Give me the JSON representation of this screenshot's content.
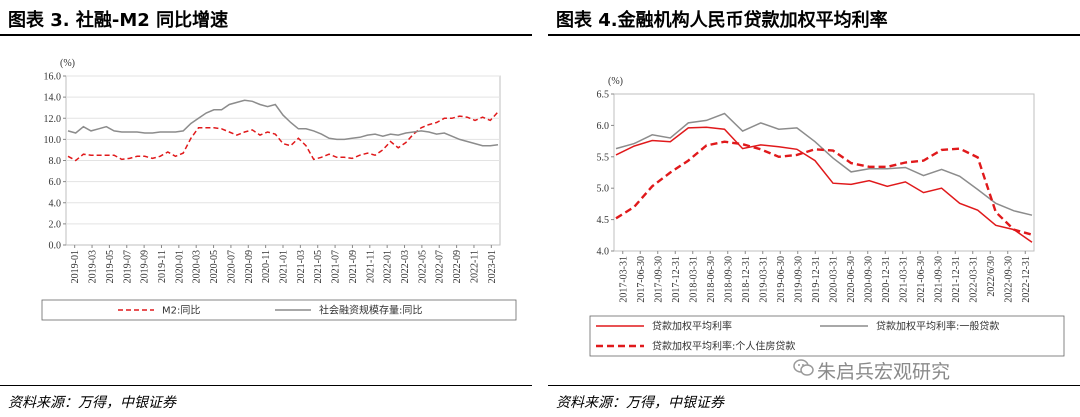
{
  "left": {
    "title": "图表 3. 社融-M2 同比增速",
    "source": "资料来源：万得，中银证券"
  },
  "right": {
    "title": "图表 4.金融机构人民币贷款加权平均利率",
    "source": "资料来源：万得，中银证券"
  },
  "watermark": {
    "text": "朱启兵宏观研究",
    "icon": "wechat-icon"
  },
  "colors": {
    "red": "#e0191b",
    "gray": "#8c8c8c"
  },
  "chart_data": [
    {
      "type": "line",
      "unit": "(%)",
      "ylim": [
        0,
        16
      ],
      "yticks": [
        "0.0",
        "2.0",
        "4.0",
        "6.0",
        "8.0",
        "10.0",
        "12.0",
        "14.0",
        "16.0"
      ],
      "xticks": [
        "2019-01",
        "2019-03",
        "2019-05",
        "2019-07",
        "2019-09",
        "2019-11",
        "2020-01",
        "2020-03",
        "2020-05",
        "2020-07",
        "2020-09",
        "2020-11",
        "2021-01",
        "2021-03",
        "2021-05",
        "2021-07",
        "2021-09",
        "2021-11",
        "2022-01",
        "2022-03",
        "2022-05",
        "2022-07",
        "2022-09",
        "2022-11",
        "2023-01"
      ],
      "grid": true,
      "legend": "bottom",
      "series": [
        {
          "name": "M2:同比",
          "style": "dashed",
          "color": "#e0191b",
          "values": [
            8.4,
            8.0,
            8.6,
            8.5,
            8.5,
            8.5,
            8.5,
            8.1,
            8.2,
            8.4,
            8.4,
            8.2,
            8.4,
            8.8,
            8.4,
            8.7,
            10.1,
            11.1,
            11.1,
            11.1,
            11.0,
            10.7,
            10.4,
            10.7,
            10.9,
            10.4,
            10.7,
            10.5,
            9.6,
            9.4,
            10.1,
            9.4,
            8.1,
            8.3,
            8.6,
            8.3,
            8.3,
            8.2,
            8.5,
            8.7,
            8.5,
            9.0,
            9.8,
            9.2,
            9.7,
            10.5,
            11.1,
            11.4,
            11.6,
            12.0,
            12.0,
            12.2,
            12.1,
            11.8,
            12.1,
            11.8,
            12.6
          ]
        },
        {
          "name": "社会融资规模存量:同比",
          "style": "solid",
          "color": "#8c8c8c",
          "values": [
            10.8,
            10.6,
            11.2,
            10.8,
            11.0,
            11.2,
            10.8,
            10.7,
            10.7,
            10.7,
            10.6,
            10.6,
            10.7,
            10.7,
            10.7,
            10.8,
            11.5,
            12.0,
            12.5,
            12.8,
            12.8,
            13.3,
            13.5,
            13.7,
            13.6,
            13.3,
            13.1,
            13.3,
            12.3,
            11.6,
            11.0,
            11.0,
            10.8,
            10.5,
            10.1,
            10.0,
            10.0,
            10.1,
            10.2,
            10.4,
            10.5,
            10.3,
            10.5,
            10.4,
            10.6,
            10.7,
            10.8,
            10.7,
            10.5,
            10.6,
            10.3,
            10.0,
            9.8,
            9.6,
            9.4,
            9.4,
            9.5
          ]
        }
      ]
    },
    {
      "type": "line",
      "unit": "(%)",
      "ylim": [
        4.0,
        6.5
      ],
      "yticks": [
        "4.0",
        "4.5",
        "5.0",
        "5.5",
        "6.0",
        "6.5"
      ],
      "xticks": [
        "2017-03-31",
        "2017-06-30",
        "2017-09-30",
        "2017-12-31",
        "2018-03-31",
        "2018-06-30",
        "2018-09-30",
        "2018-12-31",
        "2019-03-31",
        "2019-06-30",
        "2019-09-30",
        "2019-12-31",
        "2020-03-31",
        "2020-06-30",
        "2020-09-30",
        "2020-12-31",
        "2021-03-31",
        "2021-06-30",
        "2021-09-30",
        "2021-12-31",
        "2022-03-31",
        "2022/6/30",
        "2022-09-30",
        "2022-12-31"
      ],
      "grid": false,
      "legend": "bottom",
      "series": [
        {
          "name": "贷款加权平均利率",
          "style": "solid",
          "color": "#e0191b",
          "values": [
            5.53,
            5.67,
            5.76,
            5.74,
            5.96,
            5.97,
            5.94,
            5.63,
            5.69,
            5.66,
            5.62,
            5.44,
            5.08,
            5.06,
            5.12,
            5.03,
            5.1,
            4.93,
            5.0,
            4.76,
            4.65,
            4.41,
            4.34,
            4.14
          ]
        },
        {
          "name": "贷款加权平均利率:一般贷款",
          "style": "solid",
          "color": "#8c8c8c",
          "values": [
            5.63,
            5.71,
            5.85,
            5.8,
            6.04,
            6.08,
            6.19,
            5.91,
            6.04,
            5.94,
            5.96,
            5.74,
            5.48,
            5.26,
            5.31,
            5.31,
            5.33,
            5.2,
            5.3,
            5.19,
            4.98,
            4.76,
            4.64,
            4.57
          ]
        },
        {
          "name": "贷款加权平均利率:个人住房贷款",
          "style": "dashed",
          "color": "#e0191b",
          "values": [
            4.52,
            4.7,
            5.03,
            5.25,
            5.44,
            5.68,
            5.74,
            5.7,
            5.62,
            5.5,
            5.53,
            5.62,
            5.6,
            5.4,
            5.34,
            5.34,
            5.41,
            5.44,
            5.61,
            5.63,
            5.49,
            4.62,
            4.34,
            4.26
          ]
        }
      ]
    }
  ]
}
